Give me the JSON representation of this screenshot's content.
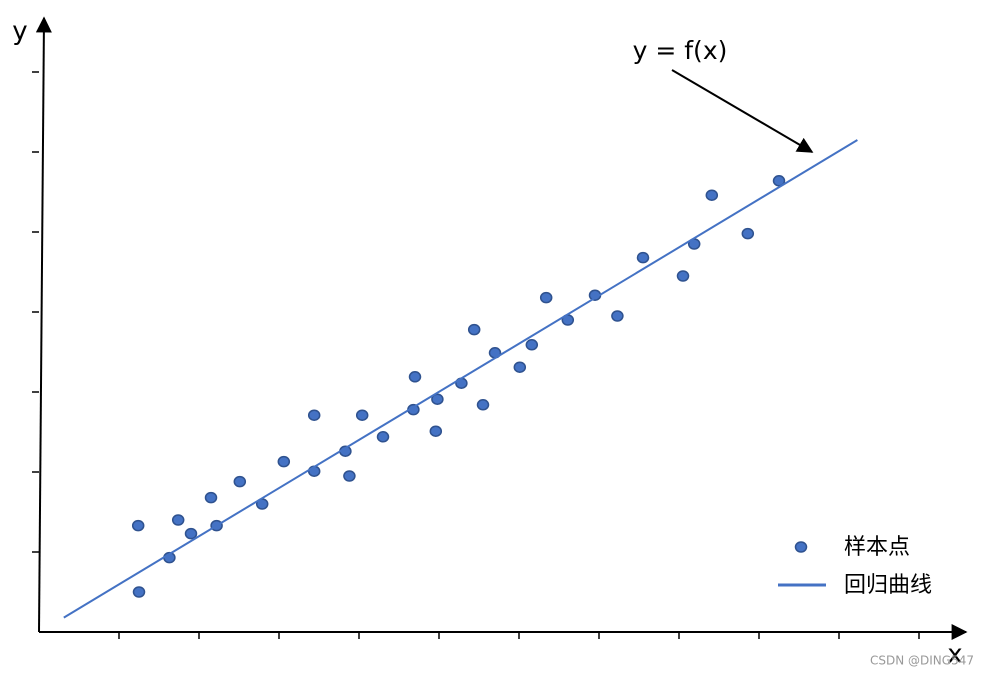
{
  "chart_data": {
    "type": "scatter",
    "x_label": "x",
    "y_label": "y",
    "annotation": "y = f(x)",
    "xlim": [
      0,
      11.58
    ],
    "ylim": [
      0,
      7.68
    ],
    "xticks": [
      1,
      2,
      3,
      4,
      5,
      6,
      7,
      8,
      9,
      10,
      11
    ],
    "yticks": [
      1,
      2,
      3,
      4,
      5,
      6,
      7
    ],
    "legend": "bottom-right",
    "series": [
      {
        "name": "样本点",
        "type": "scatter",
        "color": "#4472c4",
        "x": [
          1.24,
          1.25,
          1.63,
          1.74,
          1.9,
          2.15,
          2.22,
          2.51,
          2.79,
          3.06,
          3.44,
          3.44,
          3.83,
          3.88,
          4.04,
          4.3,
          4.68,
          4.7,
          4.96,
          4.98,
          5.28,
          5.44,
          5.55,
          5.7,
          6.01,
          6.16,
          6.34,
          6.61,
          6.95,
          7.23,
          7.55,
          8.05,
          8.19,
          8.41,
          8.86,
          9.25
        ],
        "values": [
          1.33,
          0.5,
          0.93,
          1.4,
          1.23,
          1.68,
          1.33,
          1.88,
          1.6,
          2.13,
          2.71,
          2.01,
          2.26,
          1.95,
          2.71,
          2.44,
          2.78,
          3.19,
          2.51,
          2.91,
          3.11,
          3.78,
          2.84,
          3.49,
          3.31,
          3.59,
          4.18,
          3.9,
          4.21,
          3.95,
          4.68,
          4.45,
          4.85,
          5.46,
          4.98,
          5.64
        ]
      },
      {
        "name": "回归曲线",
        "type": "line",
        "color": "#4472c4",
        "x": [
          0.31,
          10.23
        ],
        "values": [
          0.18,
          6.15
        ]
      }
    ]
  },
  "watermark": "CSDN @DING547"
}
